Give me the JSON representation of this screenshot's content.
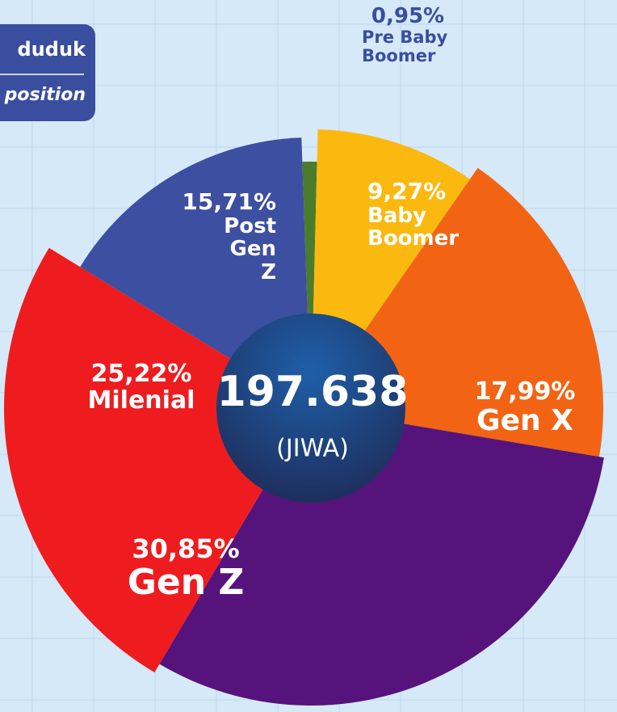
{
  "chart_data": {
    "type": "pie",
    "categories": [
      "Pre Baby Boomer",
      "Baby Boomer",
      "Gen X",
      "Gen Z",
      "Milenial",
      "Post Gen Z"
    ],
    "values": [
      0.95,
      9.27,
      17.99,
      30.85,
      25.22,
      15.71
    ],
    "value_labels": [
      "0,95%",
      "9,27%",
      "17,99%",
      "30,85%",
      "25,22%",
      "15,71%"
    ],
    "colors": [
      "#4b7c2b",
      "#fbb910",
      "#f26414",
      "#56137c",
      "#ee1c1f",
      "#3d4fa1"
    ],
    "center_value": "197.638",
    "center_unit": "(JIWA)",
    "badge": [
      "duduk",
      "position"
    ]
  }
}
